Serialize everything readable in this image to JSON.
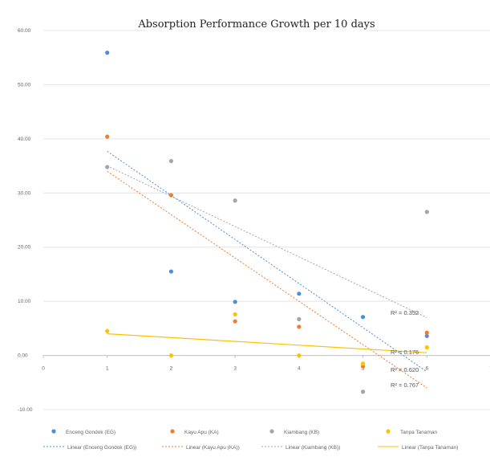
{
  "chart_data": {
    "type": "scatter",
    "title": "Absorption Performance Growth per 10 days",
    "xlim": [
      0,
      7
    ],
    "ylim": [
      -10,
      60
    ],
    "x_ticks": [
      "0",
      "1",
      "2",
      "3",
      "4",
      "5",
      "6",
      "7"
    ],
    "y_ticks": [
      "60.00",
      "50.00",
      "40.00",
      "30.00",
      "20.00",
      "10.00",
      "0.00",
      "-10.00"
    ],
    "grid": true,
    "legend_position": "bottom",
    "series": [
      {
        "name": "Enceng Gondok (EG)",
        "color": "#4A90D9",
        "x": [
          1,
          2,
          3,
          4,
          5,
          6
        ],
        "y": [
          55.9,
          15.5,
          9.9,
          11.4,
          7.1,
          3.6
        ],
        "trendline": {
          "label": "Linear (Enceng Gondok (EG))",
          "r2": "R² = 0.620",
          "start": [
            1,
            37.7
          ],
          "end": [
            6,
            -3.0
          ]
        }
      },
      {
        "name": "Kayu Apu (KA)",
        "color": "#ED7D31",
        "x": [
          1,
          2,
          3,
          4,
          5,
          6
        ],
        "y": [
          40.4,
          29.6,
          6.3,
          5.3,
          -2.0,
          4.2
        ],
        "trendline": {
          "label": "Linear (Kayu Apu (KA))",
          "r2": "R² = 0.767",
          "start": [
            1,
            34.0
          ],
          "end": [
            6,
            -6.0
          ]
        }
      },
      {
        "name": "Kiambang (KB)",
        "color": "#A5A5A5",
        "x": [
          1,
          2,
          3,
          4,
          5,
          6
        ],
        "y": [
          34.8,
          35.9,
          28.6,
          6.7,
          -6.7,
          26.5
        ],
        "trendline": {
          "label": "Linear (Kiambang (KB))",
          "r2": "R² = 0.352",
          "start": [
            1,
            35.0
          ],
          "end": [
            6,
            7.0
          ]
        }
      },
      {
        "name": "Tanpa Tanaman",
        "color": "#FFC000",
        "x": [
          1,
          2,
          3,
          4,
          5,
          6
        ],
        "y": [
          4.5,
          0.0,
          7.6,
          0.0,
          -1.5,
          1.5
        ],
        "trendline": {
          "label": "Linear (Tanpa Tanaman)",
          "r2": "R² = 0.176",
          "start": [
            1,
            4.0
          ],
          "end": [
            6,
            0.5
          ]
        }
      }
    ]
  }
}
